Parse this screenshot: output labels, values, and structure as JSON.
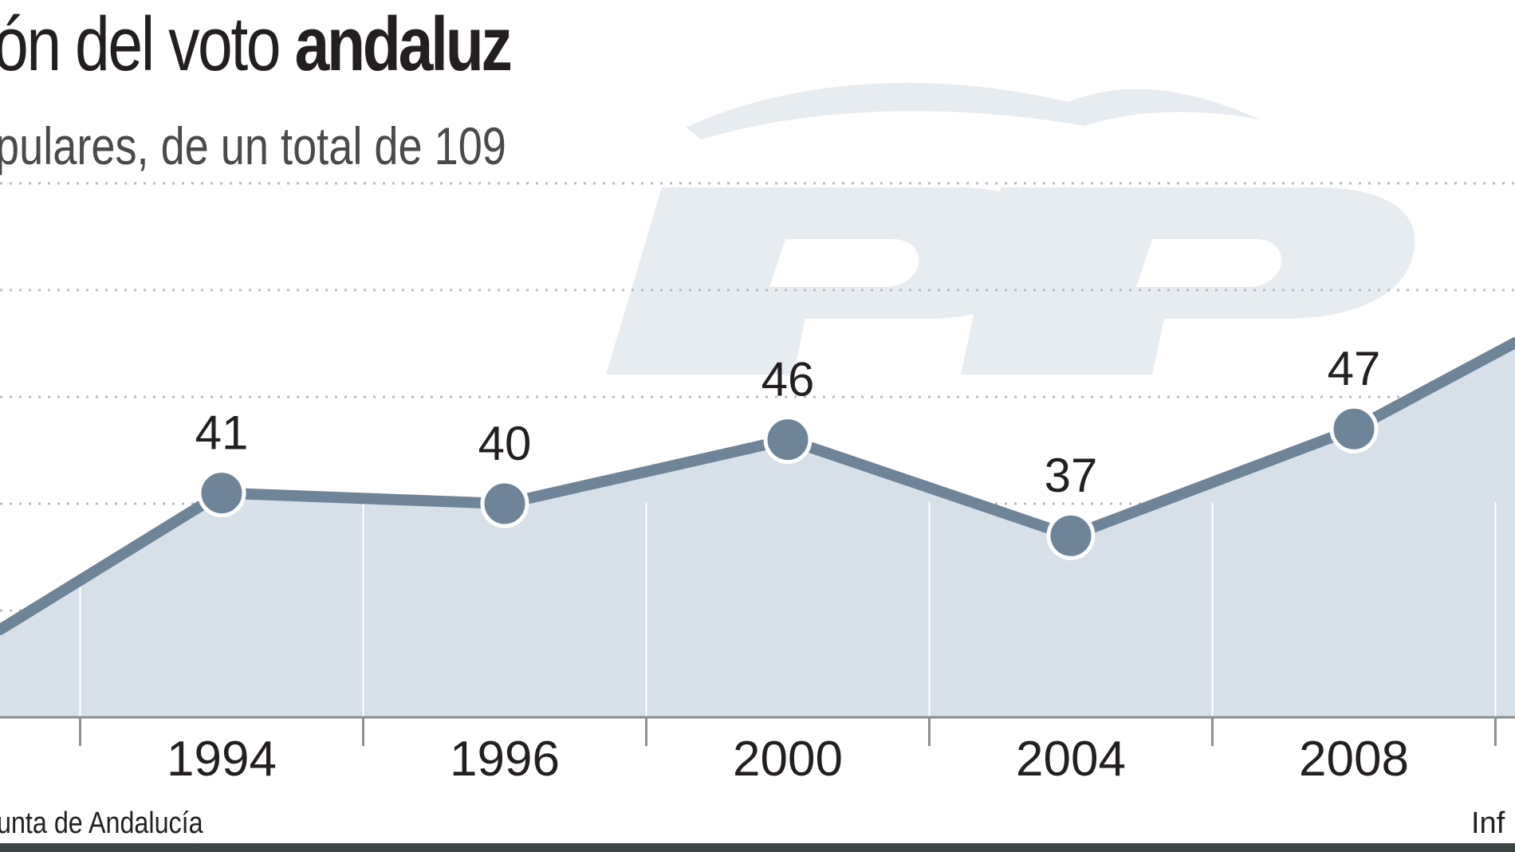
{
  "chart_data": {
    "type": "area",
    "title_regular": "ón del voto ",
    "title_bold": "andaluz",
    "subtitle": "pulares, de un total de 109",
    "x": [
      "1994",
      "1996",
      "2000",
      "2004",
      "2008"
    ],
    "values": [
      41,
      40,
      46,
      37,
      47
    ],
    "ylim": [
      20,
      70
    ],
    "grid": true,
    "source": "unta de Andalucía",
    "credit": "Inf",
    "watermark": "PP logo"
  },
  "colors": {
    "line": "#6d8499",
    "fill": "#d7e0e8",
    "grid": "#b5bcc2",
    "axis": "#8a9096",
    "watermark": "#e7ecf1"
  }
}
